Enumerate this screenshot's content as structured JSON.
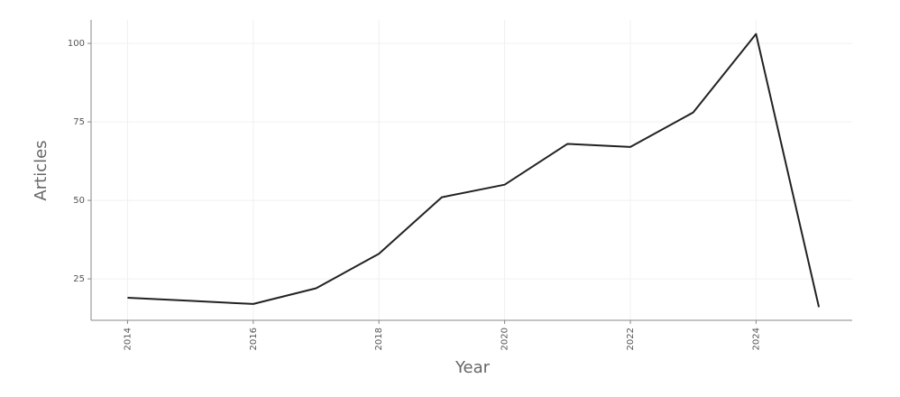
{
  "chart_data": {
    "type": "line",
    "x": [
      2014,
      2015,
      2016,
      2017,
      2018,
      2019,
      2020,
      2021,
      2022,
      2023,
      2024,
      2025
    ],
    "values": [
      19,
      18,
      17,
      22,
      33,
      51,
      55,
      68,
      67,
      78,
      103,
      16
    ],
    "color": "#222222",
    "xlabel": "Year",
    "ylabel": "Articles",
    "xlim": [
      2013.42,
      2025.53
    ],
    "xticks": [
      2014,
      2016,
      2018,
      2020,
      2022,
      2024
    ],
    "ylim": [
      11.8,
      107.5
    ],
    "yticks": [
      25,
      50,
      75,
      100
    ],
    "grid": true
  }
}
